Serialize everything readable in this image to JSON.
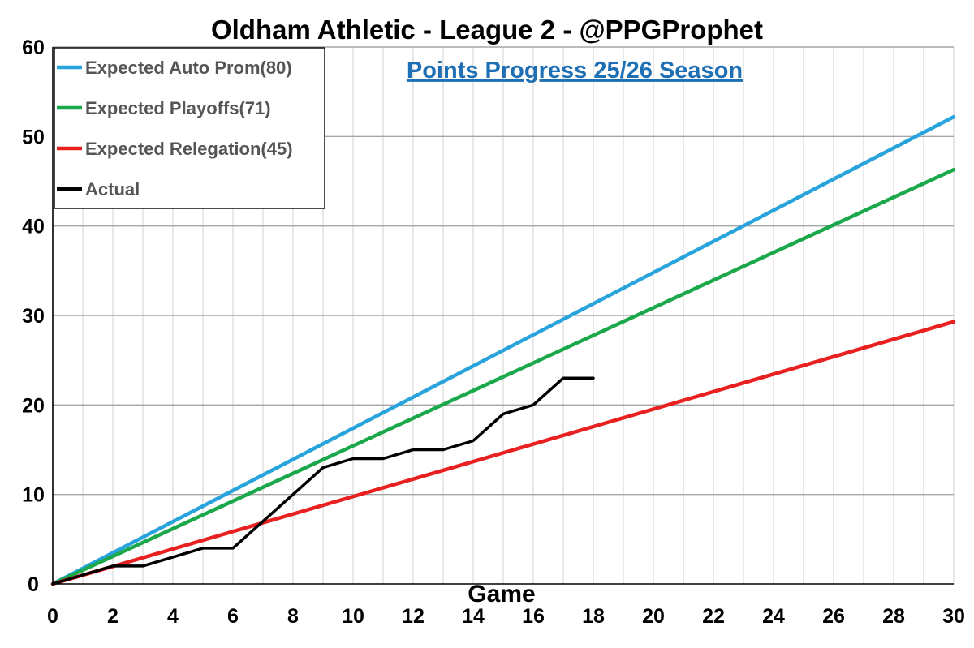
{
  "chart_data": {
    "type": "line",
    "title": "Oldham Athletic - League 2 - @PPGProphet",
    "subtitle": "Points Progress 25/26 Season",
    "xlabel": "Game",
    "ylabel": "",
    "xlim": [
      0,
      30
    ],
    "ylim": [
      0,
      60
    ],
    "x_ticks": [
      0,
      2,
      4,
      6,
      8,
      10,
      12,
      14,
      16,
      18,
      20,
      22,
      24,
      26,
      28,
      30
    ],
    "y_ticks": [
      0,
      10,
      20,
      30,
      40,
      50,
      60
    ],
    "grid": "on",
    "legend_position": "top-left",
    "series": [
      {
        "name": "Expected Auto Prom(80)",
        "color": "#29a3dc",
        "x": [
          0,
          30
        ],
        "y": [
          0,
          52.2
        ]
      },
      {
        "name": "Expected Playoffs(71)",
        "color": "#1aa84a",
        "x": [
          0,
          30
        ],
        "y": [
          0,
          46.3
        ]
      },
      {
        "name": "Expected Relegation(45)",
        "color": "#e8201f",
        "x": [
          0,
          30
        ],
        "y": [
          0,
          29.3
        ]
      },
      {
        "name": "Actual",
        "color": "#000000",
        "x": [
          0,
          1,
          2,
          3,
          4,
          5,
          6,
          7,
          8,
          9,
          10,
          11,
          12,
          13,
          14,
          15,
          16,
          17,
          18
        ],
        "y": [
          0,
          1,
          2,
          2,
          3,
          4,
          4,
          7,
          10,
          13,
          14,
          14,
          15,
          15,
          16,
          19,
          20,
          23,
          23
        ]
      }
    ]
  }
}
